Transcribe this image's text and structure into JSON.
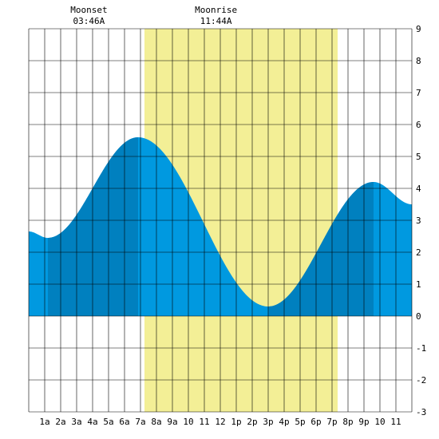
{
  "chart_data": {
    "type": "area",
    "title": "",
    "xlabel": "",
    "ylabel": "",
    "xlim": [
      0,
      24
    ],
    "ylim": [
      -3,
      9
    ],
    "grid": true,
    "x_tick_labels": [
      "1a",
      "2a",
      "3a",
      "4a",
      "5a",
      "6a",
      "7a",
      "8a",
      "9a",
      "10",
      "11",
      "12",
      "1p",
      "2p",
      "3p",
      "4p",
      "5p",
      "6p",
      "7p",
      "8p",
      "9p",
      "10",
      "11"
    ],
    "y_ticks": [
      -3,
      -2,
      -1,
      0,
      1,
      2,
      3,
      4,
      5,
      6,
      7,
      8,
      9
    ],
    "daylight": {
      "start_hour": 7.25,
      "end_hour": 19.35,
      "color": "#f3ef96"
    },
    "moon_events": [
      {
        "name": "Moonset",
        "time": "03:46A",
        "hour": 3.77
      },
      {
        "name": "Moonrise",
        "time": "11:44A",
        "hour": 11.73
      }
    ],
    "tide_extremes": [
      {
        "hour": 1.2,
        "height": 2.45
      },
      {
        "hour": 6.85,
        "height": 5.6
      },
      {
        "hour": 15.0,
        "height": 0.3
      },
      {
        "hour": 21.6,
        "height": 4.2
      }
    ],
    "series": [
      {
        "values_at_hours": [
          [
            0,
            2.65
          ],
          [
            24,
            3.5
          ]
        ]
      }
    ],
    "shading_bands": [
      {
        "from_hour": 1.2,
        "to_hour": 6.85,
        "color": "#0080bf"
      },
      {
        "from_hour": 15.0,
        "to_hour": 21.6,
        "color": "#0080bf"
      }
    ],
    "colors": {
      "tide": "#0099e0",
      "tide_dark": "#0080bf",
      "grid": "#000000"
    }
  }
}
